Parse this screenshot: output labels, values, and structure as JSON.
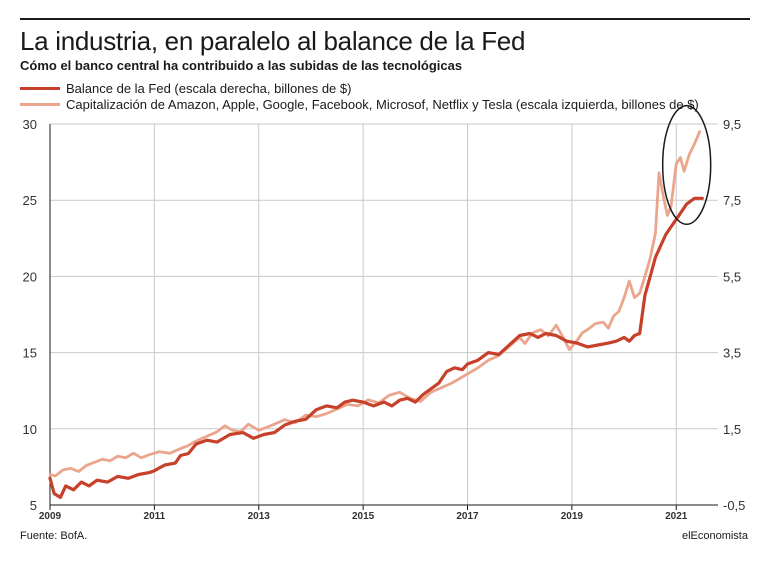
{
  "header": {
    "title": "La industria, en paralelo al balance de la Fed",
    "subtitle": "Cómo el banco central ha contribuido a las subidas de las tecnológicas"
  },
  "footer": {
    "source": "Fuente: BofA.",
    "brand": "elEconomista"
  },
  "colors": {
    "fed": "#c7402a",
    "tech": "#eba58c",
    "grid": "#c9c9c9",
    "axis": "#1a1a1a"
  },
  "chart_data": {
    "type": "line",
    "title": "La industria, en paralelo al balance de la Fed",
    "subtitle": "Cómo el banco central ha contribuido a las subidas de las tecnológicas",
    "x_axis": {
      "range": [
        2009.0,
        2021.8
      ],
      "tick_labels": [
        "2009",
        "2011",
        "2013",
        "2015",
        "2017",
        "2019",
        "2021"
      ]
    },
    "y_left": {
      "range": [
        5,
        30
      ],
      "tick_labels": [
        "5",
        "10",
        "15",
        "20",
        "25",
        "30"
      ],
      "unit": "billones de $"
    },
    "y_right": {
      "range": [
        -0.5,
        9.5
      ],
      "tick_labels": [
        "-0,5",
        "1,5",
        "3,5",
        "5,5",
        "7,5",
        "9,5"
      ],
      "unit": "billones de $"
    },
    "grid": true,
    "legend_position": "top-left",
    "annotation": "circle around the 2021 peak of both series",
    "series": [
      {
        "name": "Balance de la Fed (escala derecha, billones de $)",
        "axis": "right",
        "color": "#c7402a",
        "points": [
          [
            2009.0,
            0.2
          ],
          [
            2009.08,
            -0.2
          ],
          [
            2009.2,
            -0.3
          ],
          [
            2009.3,
            0.0
          ],
          [
            2009.45,
            -0.1
          ],
          [
            2009.6,
            0.1
          ],
          [
            2009.75,
            0.0
          ],
          [
            2009.9,
            0.15
          ],
          [
            2010.1,
            0.1
          ],
          [
            2010.3,
            0.25
          ],
          [
            2010.5,
            0.2
          ],
          [
            2010.7,
            0.3
          ],
          [
            2010.9,
            0.35
          ],
          [
            2011.0,
            0.4
          ],
          [
            2011.2,
            0.55
          ],
          [
            2011.4,
            0.6
          ],
          [
            2011.5,
            0.8
          ],
          [
            2011.65,
            0.85
          ],
          [
            2011.8,
            1.1
          ],
          [
            2012.0,
            1.2
          ],
          [
            2012.2,
            1.15
          ],
          [
            2012.45,
            1.35
          ],
          [
            2012.7,
            1.4
          ],
          [
            2012.9,
            1.25
          ],
          [
            2013.1,
            1.35
          ],
          [
            2013.3,
            1.4
          ],
          [
            2013.5,
            1.6
          ],
          [
            2013.7,
            1.7
          ],
          [
            2013.9,
            1.75
          ],
          [
            2014.1,
            2.0
          ],
          [
            2014.3,
            2.1
          ],
          [
            2014.5,
            2.05
          ],
          [
            2014.65,
            2.2
          ],
          [
            2014.8,
            2.25
          ],
          [
            2015.0,
            2.2
          ],
          [
            2015.2,
            2.1
          ],
          [
            2015.4,
            2.2
          ],
          [
            2015.55,
            2.1
          ],
          [
            2015.7,
            2.25
          ],
          [
            2015.85,
            2.3
          ],
          [
            2016.0,
            2.2
          ],
          [
            2016.15,
            2.4
          ],
          [
            2016.3,
            2.55
          ],
          [
            2016.45,
            2.7
          ],
          [
            2016.6,
            3.0
          ],
          [
            2016.75,
            3.1
          ],
          [
            2016.9,
            3.05
          ],
          [
            2017.0,
            3.2
          ],
          [
            2017.2,
            3.3
          ],
          [
            2017.4,
            3.5
          ],
          [
            2017.6,
            3.45
          ],
          [
            2017.8,
            3.7
          ],
          [
            2018.0,
            3.95
          ],
          [
            2018.2,
            4.0
          ],
          [
            2018.35,
            3.9
          ],
          [
            2018.5,
            4.0
          ],
          [
            2018.7,
            3.95
          ],
          [
            2018.9,
            3.8
          ],
          [
            2019.1,
            3.75
          ],
          [
            2019.3,
            3.65
          ],
          [
            2019.5,
            3.7
          ],
          [
            2019.7,
            3.75
          ],
          [
            2019.85,
            3.8
          ],
          [
            2020.0,
            3.9
          ],
          [
            2020.1,
            3.8
          ],
          [
            2020.2,
            3.95
          ],
          [
            2020.3,
            4.0
          ],
          [
            2020.4,
            5.0
          ],
          [
            2020.5,
            5.5
          ],
          [
            2020.6,
            6.0
          ],
          [
            2020.7,
            6.3
          ],
          [
            2020.8,
            6.6
          ],
          [
            2020.9,
            6.8
          ],
          [
            2021.0,
            7.0
          ],
          [
            2021.1,
            7.2
          ],
          [
            2021.2,
            7.4
          ],
          [
            2021.35,
            7.55
          ],
          [
            2021.5,
            7.55
          ]
        ]
      },
      {
        "name": "Capitalización de Amazon, Apple, Google, Facebook, Microsof, Netflix y Tesla (escala izquierda, billones de $)",
        "axis": "left",
        "color": "#eba58c",
        "points": [
          [
            2009.0,
            7.0
          ],
          [
            2009.1,
            6.9
          ],
          [
            2009.25,
            7.3
          ],
          [
            2009.4,
            7.4
          ],
          [
            2009.55,
            7.2
          ],
          [
            2009.7,
            7.6
          ],
          [
            2009.85,
            7.8
          ],
          [
            2010.0,
            8.0
          ],
          [
            2010.15,
            7.9
          ],
          [
            2010.3,
            8.2
          ],
          [
            2010.45,
            8.1
          ],
          [
            2010.6,
            8.4
          ],
          [
            2010.75,
            8.1
          ],
          [
            2010.9,
            8.3
          ],
          [
            2011.1,
            8.5
          ],
          [
            2011.3,
            8.4
          ],
          [
            2011.5,
            8.7
          ],
          [
            2011.65,
            8.9
          ],
          [
            2011.8,
            9.2
          ],
          [
            2012.0,
            9.5
          ],
          [
            2012.2,
            9.8
          ],
          [
            2012.35,
            10.2
          ],
          [
            2012.5,
            9.9
          ],
          [
            2012.65,
            9.8
          ],
          [
            2012.8,
            10.3
          ],
          [
            2013.0,
            9.9
          ],
          [
            2013.15,
            10.1
          ],
          [
            2013.3,
            10.3
          ],
          [
            2013.5,
            10.6
          ],
          [
            2013.7,
            10.4
          ],
          [
            2013.9,
            10.9
          ],
          [
            2014.1,
            10.8
          ],
          [
            2014.3,
            11.0
          ],
          [
            2014.5,
            11.3
          ],
          [
            2014.7,
            11.6
          ],
          [
            2014.9,
            11.5
          ],
          [
            2015.1,
            11.9
          ],
          [
            2015.3,
            11.7
          ],
          [
            2015.5,
            12.2
          ],
          [
            2015.7,
            12.4
          ],
          [
            2015.9,
            12.0
          ],
          [
            2016.1,
            11.8
          ],
          [
            2016.3,
            12.4
          ],
          [
            2016.5,
            12.7
          ],
          [
            2016.7,
            13.0
          ],
          [
            2016.85,
            13.3
          ],
          [
            2017.0,
            13.6
          ],
          [
            2017.2,
            14.0
          ],
          [
            2017.4,
            14.5
          ],
          [
            2017.6,
            14.8
          ],
          [
            2017.8,
            15.4
          ],
          [
            2018.0,
            16.0
          ],
          [
            2018.1,
            15.6
          ],
          [
            2018.25,
            16.3
          ],
          [
            2018.4,
            16.5
          ],
          [
            2018.55,
            16.1
          ],
          [
            2018.7,
            16.8
          ],
          [
            2018.85,
            15.9
          ],
          [
            2018.95,
            15.2
          ],
          [
            2019.1,
            15.8
          ],
          [
            2019.2,
            16.3
          ],
          [
            2019.3,
            16.5
          ],
          [
            2019.45,
            16.9
          ],
          [
            2019.6,
            17.0
          ],
          [
            2019.7,
            16.6
          ],
          [
            2019.8,
            17.4
          ],
          [
            2019.9,
            17.7
          ],
          [
            2020.0,
            18.6
          ],
          [
            2020.1,
            19.7
          ],
          [
            2020.2,
            18.6
          ],
          [
            2020.3,
            18.9
          ],
          [
            2020.4,
            20.0
          ],
          [
            2020.5,
            21.2
          ],
          [
            2020.6,
            22.8
          ],
          [
            2020.67,
            26.8
          ],
          [
            2020.75,
            25.3
          ],
          [
            2020.83,
            24.0
          ],
          [
            2020.9,
            24.6
          ],
          [
            2021.0,
            27.4
          ],
          [
            2021.08,
            27.8
          ],
          [
            2021.15,
            26.9
          ],
          [
            2021.25,
            28.0
          ],
          [
            2021.35,
            28.7
          ],
          [
            2021.45,
            29.5
          ]
        ]
      }
    ]
  }
}
